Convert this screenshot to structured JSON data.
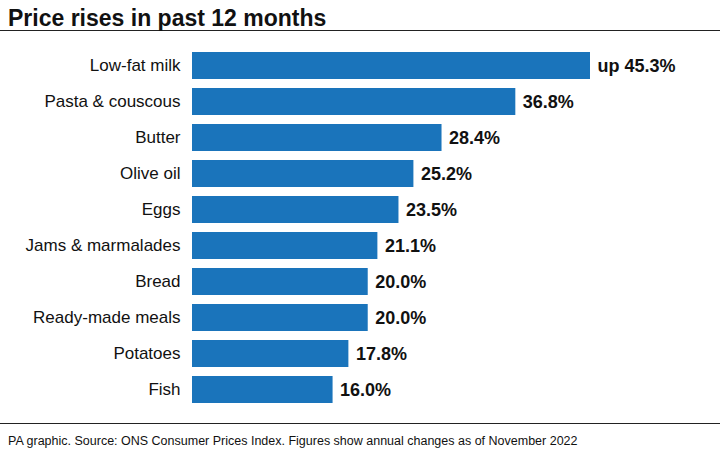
{
  "chart_data": {
    "type": "bar",
    "title": "Price rises in past 12 months",
    "caption": "PA graphic. Source: ONS Consumer Prices Index. Figures show annual changes as of November 2022",
    "orientation": "horizontal",
    "categories": [
      "Low-fat milk",
      "Pasta & couscous",
      "Butter",
      "Olive oil",
      "Eggs",
      "Jams & marmalades",
      "Bread",
      "Ready-made meals",
      "Potatoes",
      "Fish"
    ],
    "values": [
      45.3,
      36.8,
      28.4,
      25.2,
      23.5,
      21.1,
      20.0,
      20.0,
      17.8,
      16.0
    ],
    "value_labels": [
      "up 45.3%",
      "36.8%",
      "28.4%",
      "25.2%",
      "23.5%",
      "21.1%",
      "20.0%",
      "20.0%",
      "17.8%",
      "16.0%"
    ],
    "color": "#1a74bb",
    "data_labels": true,
    "tick_labels": "y"
  }
}
